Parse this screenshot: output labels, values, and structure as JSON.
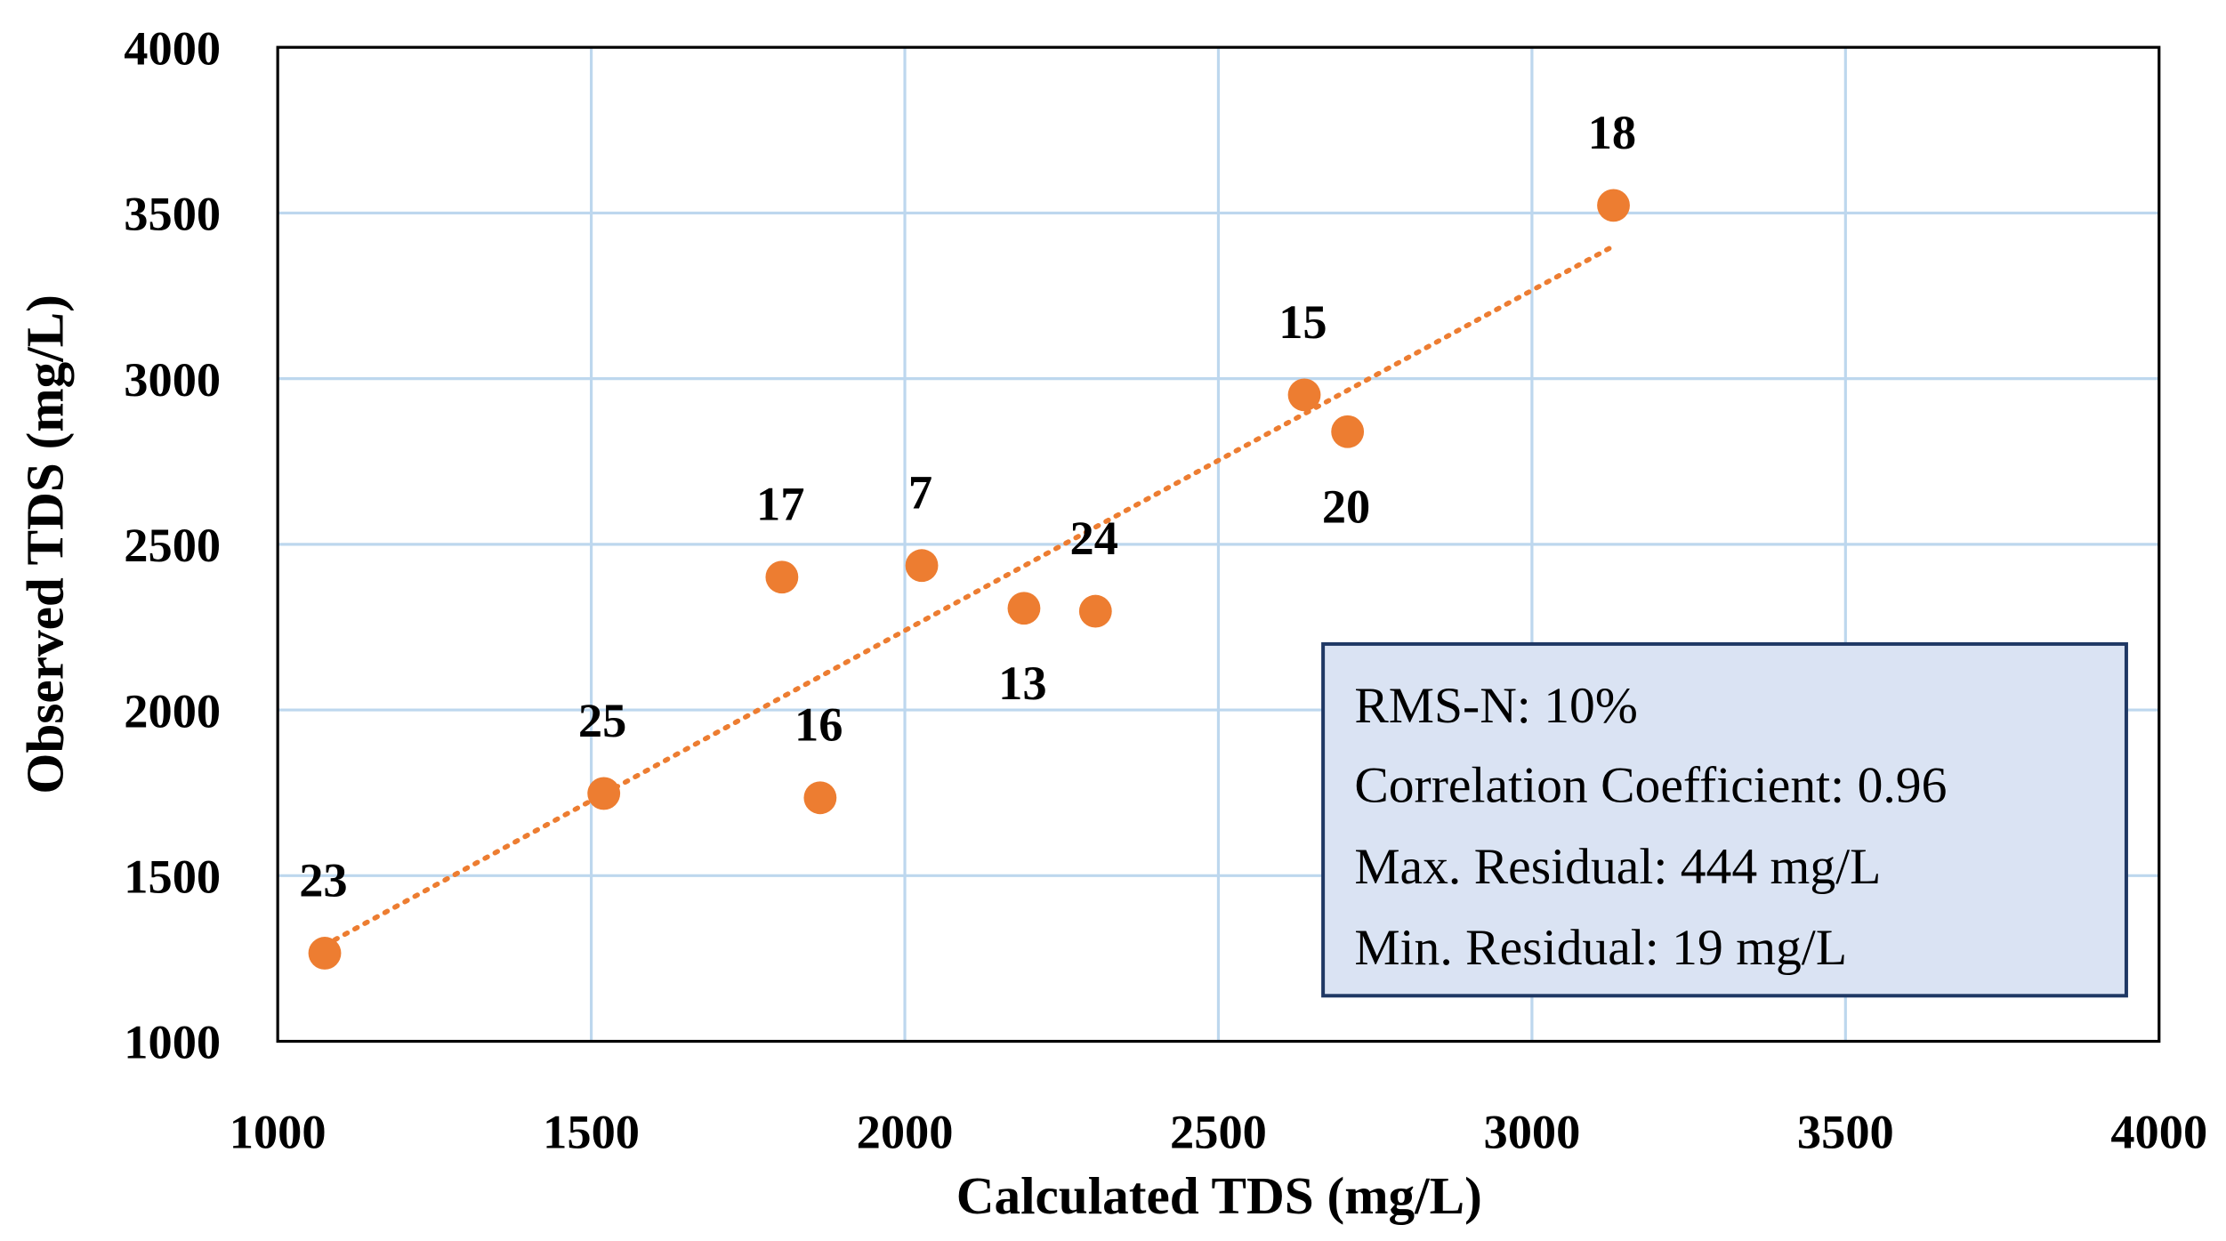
{
  "chart_data": {
    "type": "scatter",
    "xlabel": "Calculated TDS (mg/L)",
    "ylabel": "Observed TDS (mg/L)",
    "xlim": [
      1000,
      4000
    ],
    "ylim": [
      1000,
      4000
    ],
    "xticks": [
      "1000",
      "1500",
      "2000",
      "2500",
      "3000",
      "3500",
      "4000"
    ],
    "yticks": [
      "1000",
      "1500",
      "2000",
      "2500",
      "3000",
      "3500",
      "4000"
    ],
    "grid": true,
    "points": [
      {
        "label": "23",
        "x": 1075,
        "y": 1266,
        "label_pos": "above"
      },
      {
        "label": "25",
        "x": 1520,
        "y": 1748,
        "label_pos": "above"
      },
      {
        "label": "16",
        "x": 1865,
        "y": 1735,
        "label_pos": "above"
      },
      {
        "label": "17",
        "x": 1804,
        "y": 2401,
        "label_pos": "above"
      },
      {
        "label": "7",
        "x": 2027,
        "y": 2436,
        "label_pos": "above"
      },
      {
        "label": "13",
        "x": 2190,
        "y": 2307,
        "label_pos": "below"
      },
      {
        "label": "24",
        "x": 2304,
        "y": 2298,
        "label_pos": "above"
      },
      {
        "label": "15",
        "x": 2637,
        "y": 2951,
        "label_pos": "above"
      },
      {
        "label": "20",
        "x": 2706,
        "y": 2840,
        "label_pos": "below"
      },
      {
        "label": "18",
        "x": 3130,
        "y": 3523,
        "label_pos": "above"
      }
    ],
    "trendline": {
      "type": "linear",
      "style": "dotted",
      "x": [
        1075,
        3130
      ],
      "y": [
        1290,
        3400
      ]
    },
    "stats_box": [
      "RMS-N: 10%",
      "Correlation Coefficient: 0.96",
      "Max. Residual: 444 mg/L",
      "Min. Residual: 19 mg/L"
    ],
    "colors": {
      "marker": "#ED7D31",
      "grid": "#BDD7EE",
      "box_fill": "#DAE3F3",
      "box_border": "#1F3864"
    }
  }
}
